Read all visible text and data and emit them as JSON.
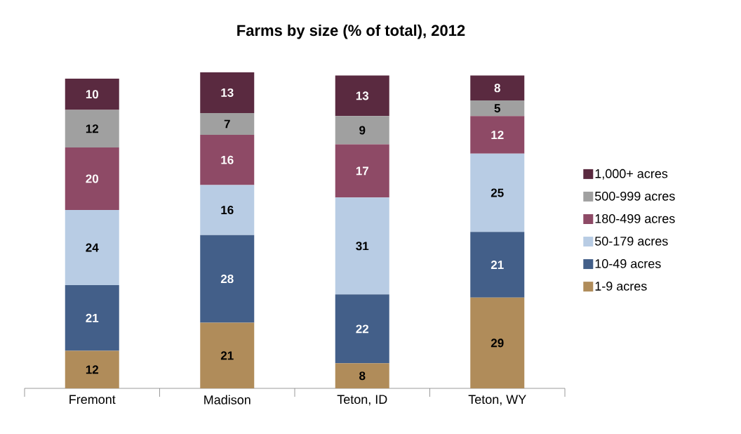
{
  "chart_data": {
    "type": "bar",
    "title": "Farms by size (% of total), 2012",
    "categories": [
      "Fremont",
      "Madison",
      "Teton, ID",
      "Teton, WY"
    ],
    "stacked": true,
    "data_labels": true,
    "legend": "right",
    "series": [
      {
        "name": "1-9 acres",
        "color": "#b08c5a",
        "values": [
          12,
          21,
          8,
          29
        ]
      },
      {
        "name": "10-49 acres",
        "color": "#435f89",
        "values": [
          21,
          28,
          22,
          21
        ]
      },
      {
        "name": "50-179 acres",
        "color": "#b8cce4",
        "values": [
          24,
          16,
          31,
          25
        ]
      },
      {
        "name": "180-499 acres",
        "color": "#8e4a66",
        "values": [
          20,
          16,
          17,
          12
        ]
      },
      {
        "name": "500-999 acres",
        "color": "#a0a0a0",
        "values": [
          12,
          7,
          9,
          5
        ]
      },
      {
        "name": "1,000+ acres",
        "color": "#5a2a40",
        "values": [
          10,
          13,
          13,
          8
        ]
      }
    ]
  }
}
